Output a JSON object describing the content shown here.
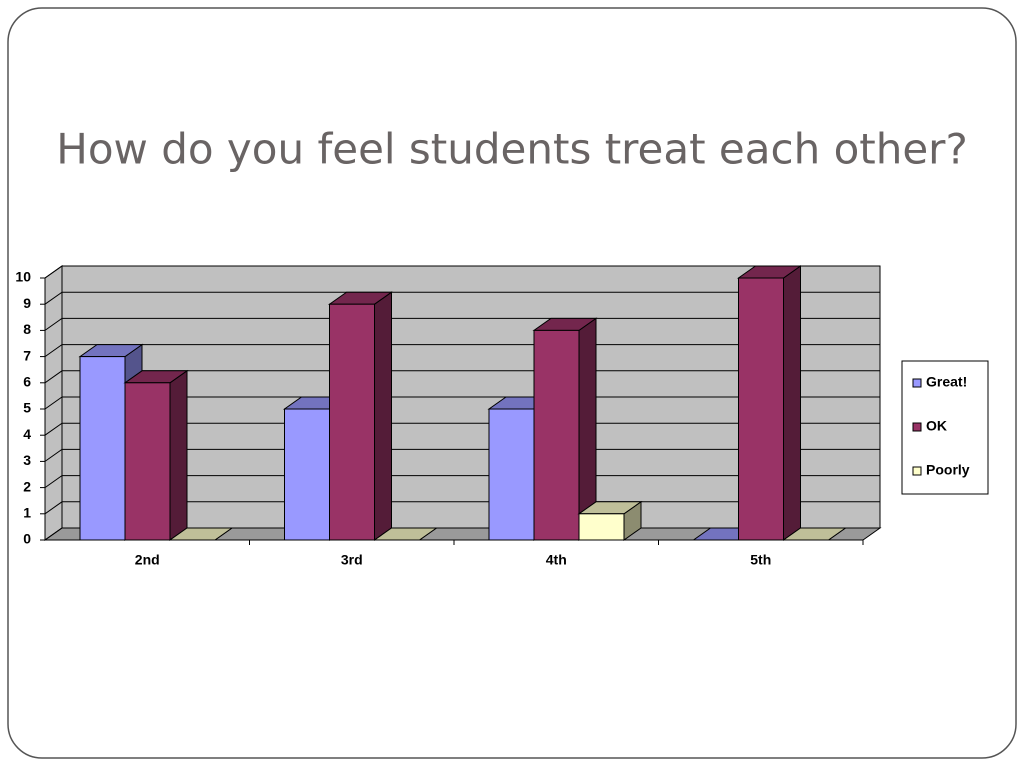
{
  "chart_data": {
    "type": "bar3d",
    "title": "How do you feel students treat each other?",
    "categories": [
      "2nd",
      "3rd",
      "4th",
      "5th"
    ],
    "series": [
      {
        "name": "Great!",
        "color": "#9999ff",
        "values": [
          7,
          5,
          5,
          0
        ]
      },
      {
        "name": "OK",
        "color": "#993366",
        "values": [
          6,
          9,
          8,
          10
        ]
      },
      {
        "name": "Poorly",
        "color": "#ffffcc",
        "values": [
          0,
          0,
          1,
          0
        ]
      }
    ],
    "ylim": [
      0,
      10
    ],
    "yticks": [
      0,
      1,
      2,
      3,
      4,
      5,
      6,
      7,
      8,
      9,
      10
    ],
    "grid": true
  }
}
